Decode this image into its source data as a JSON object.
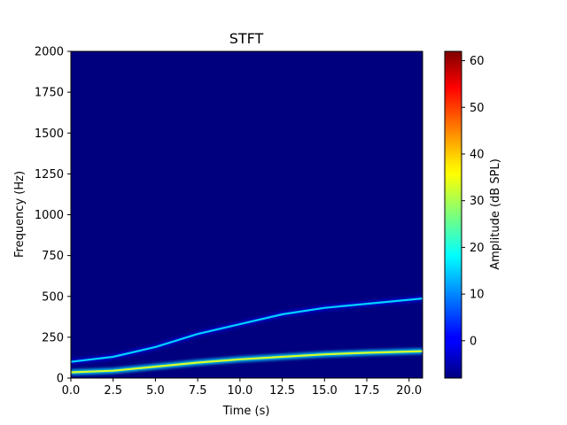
{
  "chart_data": {
    "type": "heatmap",
    "title": "STFT",
    "xlabel": "Time (s)",
    "ylabel": "Frequency (Hz)",
    "xlim": [
      0,
      20.8
    ],
    "ylim": [
      0,
      2000
    ],
    "xticks": [
      0.0,
      2.5,
      5.0,
      7.5,
      10.0,
      12.5,
      15.0,
      17.5,
      20.0
    ],
    "xtick_labels": [
      "0.0",
      "2.5",
      "5.0",
      "7.5",
      "10.0",
      "12.5",
      "15.0",
      "17.5",
      "20.0"
    ],
    "yticks": [
      0,
      250,
      500,
      750,
      1000,
      1250,
      1500,
      1750,
      2000
    ],
    "ytick_labels": [
      "0",
      "250",
      "500",
      "750",
      "1000",
      "1250",
      "1500",
      "1750",
      "2000"
    ],
    "grid": false,
    "colormap": "jet",
    "colorbar": {
      "label": "Amplitude (dB SPL)",
      "range": [
        -8,
        62
      ],
      "ticks": [
        0,
        10,
        20,
        30,
        40,
        50,
        60
      ],
      "tick_labels": [
        "0",
        "10",
        "20",
        "30",
        "40",
        "50",
        "60"
      ]
    },
    "background_level_db": -8,
    "series": [
      {
        "t": [
          0,
          2.5,
          5,
          7.5,
          10,
          12.5,
          15,
          17.5,
          20.8
        ],
        "freq_hz": [
          100,
          130,
          190,
          270,
          330,
          390,
          430,
          455,
          487
        ],
        "amplitude_db": 15
      },
      {
        "t": [
          0,
          2.5,
          5,
          7.5,
          10,
          12.5,
          15,
          17.5,
          20.8
        ],
        "freq_hz": [
          35,
          45,
          70,
          95,
          115,
          130,
          145,
          155,
          165
        ],
        "amplitude_db": 33
      }
    ]
  }
}
